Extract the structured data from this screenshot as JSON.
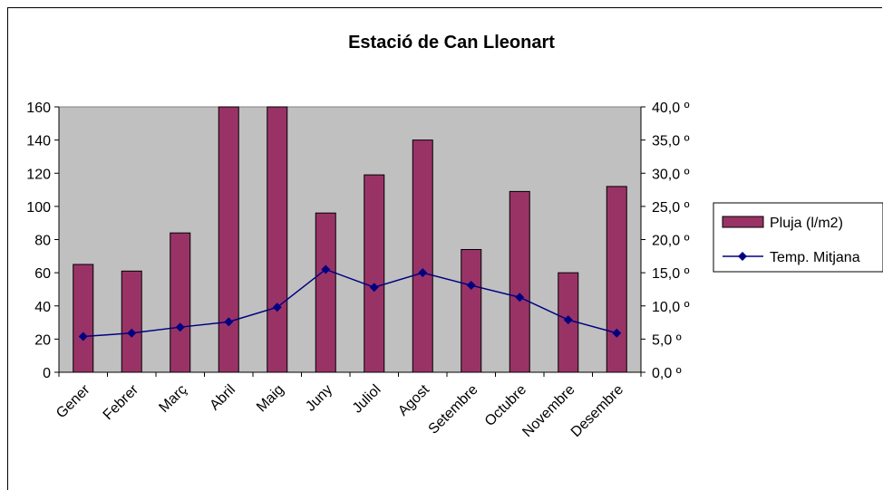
{
  "chart_data": {
    "type": "bar",
    "title": "Estació de Can Lleonart",
    "categories": [
      "Gener",
      "Febrer",
      "Març",
      "Abril",
      "Maig",
      "Juny",
      "Juliol",
      "Agost",
      "Setembre",
      "Octubre",
      "Novembre",
      "Desembre"
    ],
    "series": [
      {
        "name": "Pluja (l/m2)",
        "type": "bar",
        "axis": "left",
        "color": "#993366",
        "values": [
          65,
          61,
          84,
          162,
          162,
          96,
          119,
          140,
          74,
          109,
          60,
          112
        ]
      },
      {
        "name": "Temp. Mitjana",
        "type": "line",
        "axis": "right",
        "color": "#000080",
        "marker": "diamond",
        "values": [
          5.4,
          5.9,
          6.8,
          7.6,
          9.8,
          15.5,
          12.8,
          15.0,
          13.1,
          11.3,
          7.9,
          5.9
        ]
      }
    ],
    "ylim": [
      0,
      160
    ],
    "y_ticks": [
      "0",
      "20",
      "40",
      "60",
      "80",
      "100",
      "120",
      "140",
      "160"
    ],
    "y2lim": [
      0,
      40
    ],
    "y2_ticks": [
      "0,0 º",
      "5,0 º",
      "10,0 º",
      "15,0 º",
      "20,0 º",
      "25,0 º",
      "30,0 º",
      "35,0 º",
      "40,0 º"
    ],
    "plot_background": "#c0c0c0",
    "grid": false,
    "legend_position": "right"
  }
}
